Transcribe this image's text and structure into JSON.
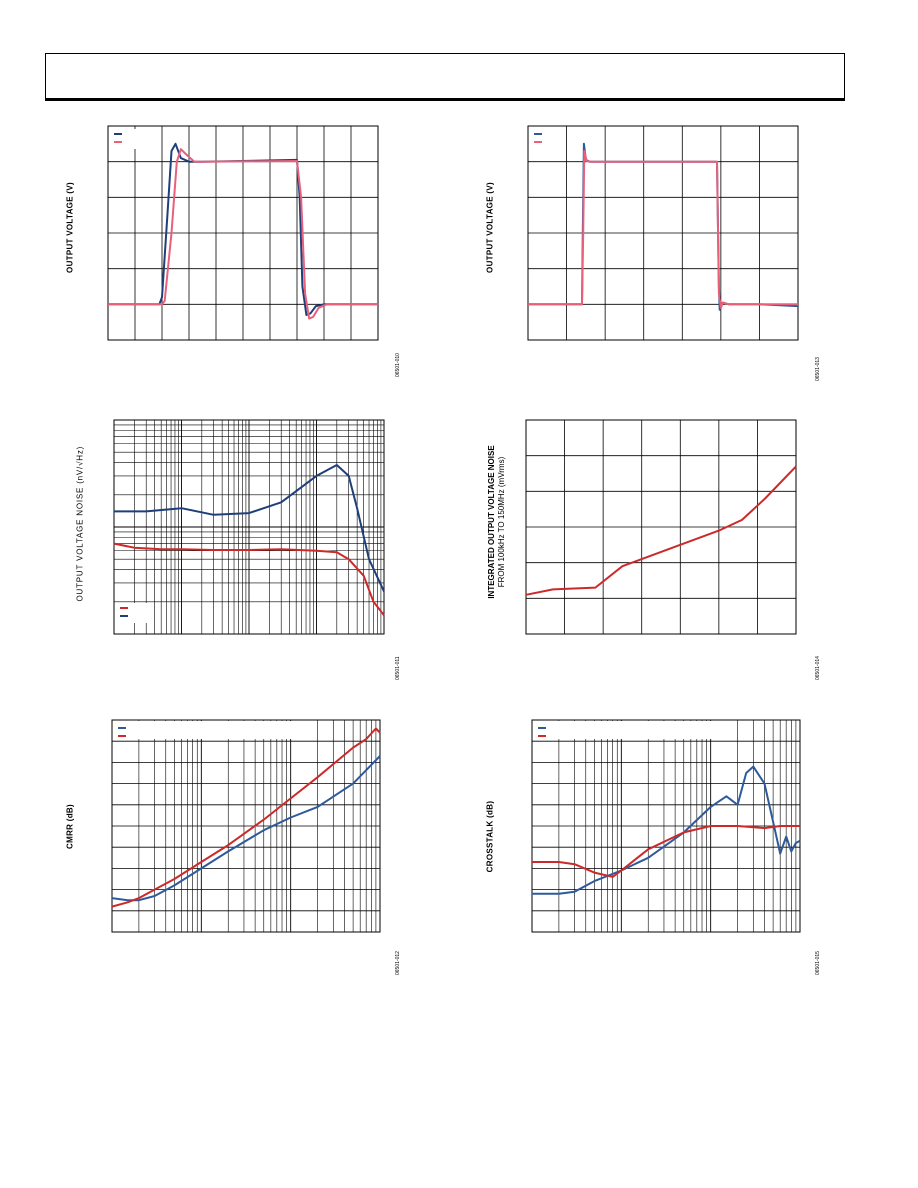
{
  "figure_codes": [
    "06501-010",
    "06501-013",
    "06501-011",
    "06501-014",
    "06501-012",
    "06501-015"
  ],
  "chart_data": [
    {
      "id": "p1",
      "type": "line",
      "ylabel": "OUTPUT VOLTAGE (V)",
      "grid": true,
      "legend": "top-left",
      "xlim": [
        0,
        10
      ],
      "ylim": [
        0,
        6
      ],
      "series": [
        {
          "color": "#1f3f7a",
          "x": [
            0,
            1.9,
            2.0,
            2.2,
            2.35,
            2.5,
            2.7,
            3.0,
            3.5,
            7.0,
            7.1,
            7.2,
            7.35,
            7.5,
            7.7,
            8.0,
            9,
            10
          ],
          "y": [
            1,
            1,
            1.2,
            3.5,
            5.3,
            5.5,
            5.1,
            5,
            5,
            5.05,
            4,
            1.5,
            0.7,
            0.75,
            0.95,
            1,
            1,
            1
          ]
        },
        {
          "color": "#e8607a",
          "x": [
            0,
            2.0,
            2.1,
            2.35,
            2.55,
            2.7,
            2.9,
            3.2,
            3.5,
            7.0,
            7.15,
            7.3,
            7.45,
            7.6,
            7.8,
            8.1,
            9,
            10
          ],
          "y": [
            1,
            1,
            1.1,
            3.0,
            5.0,
            5.35,
            5.2,
            5,
            5,
            5.02,
            4,
            1.3,
            0.6,
            0.65,
            0.9,
            1,
            1,
            1
          ]
        }
      ]
    },
    {
      "id": "p2",
      "type": "line",
      "ylabel": "OUTPUT VOLTAGE (V)",
      "grid": true,
      "legend": "top-left",
      "xlim": [
        0,
        7
      ],
      "ylim": [
        0,
        6
      ],
      "series": [
        {
          "color": "#2e5a9c",
          "x": [
            0,
            1.4,
            1.42,
            1.45,
            1.5,
            1.6,
            2,
            4.9,
            4.95,
            4.97,
            5.0,
            5.05,
            5.2,
            6,
            7
          ],
          "y": [
            1,
            1,
            3,
            5.5,
            5.05,
            5,
            5,
            5,
            1.5,
            0.85,
            1.0,
            1.05,
            1.0,
            1,
            0.95
          ]
        },
        {
          "color": "#e8607a",
          "x": [
            0,
            1.4,
            1.43,
            1.46,
            1.52,
            1.6,
            2,
            4.9,
            4.95,
            5.0,
            5.05,
            5.2,
            6,
            7
          ],
          "y": [
            1,
            1,
            3,
            5.3,
            5.02,
            5,
            5,
            5,
            1.3,
            0.9,
            1.05,
            1.0,
            1,
            1
          ]
        }
      ]
    },
    {
      "id": "p3",
      "type": "line",
      "ylabel": "OUTPUT VOLTAGE NOISE (nV/√Hz)",
      "grid": true,
      "log_x": true,
      "log_y": true,
      "legend": "bottom-left",
      "xlim": [
        10,
        100000
      ],
      "ylim": [
        1,
        100
      ],
      "series": [
        {
          "color": "#1f3f7a",
          "x": [
            10,
            30,
            100,
            300,
            1000,
            3000,
            10000,
            20000,
            30000,
            40000,
            60000,
            100000
          ],
          "y": [
            14,
            14,
            15,
            13,
            13.5,
            17,
            30,
            38,
            30,
            15,
            5,
            2.5
          ]
        },
        {
          "color": "#cc2a2a",
          "x": [
            10,
            20,
            50,
            100,
            300,
            1000,
            3000,
            10000,
            20000,
            30000,
            50000,
            70000,
            100000
          ],
          "y": [
            7,
            6.4,
            6.2,
            6.2,
            6.1,
            6.1,
            6.2,
            6.0,
            5.8,
            5.0,
            3.5,
            2.0,
            1.5
          ]
        }
      ]
    },
    {
      "id": "p4",
      "type": "line",
      "ylabel": "INTEGRATED OUTPUT VOLTAGE NOISE",
      "ylabel2": "FROM 100kHz TO 150MHz (mVrms)",
      "grid": true,
      "xlim": [
        0,
        7
      ],
      "ylim": [
        0,
        6
      ],
      "series": [
        {
          "color": "#cc2a2a",
          "x": [
            0,
            0.7,
            1.8,
            2.5,
            4,
            5,
            5.6,
            6.2,
            7
          ],
          "y": [
            1.1,
            1.25,
            1.3,
            1.9,
            2.5,
            2.9,
            3.2,
            3.8,
            4.7
          ]
        }
      ]
    },
    {
      "id": "p5",
      "type": "line",
      "ylabel": "CMRR (dB)",
      "grid": true,
      "log_x": true,
      "legend": "top-left",
      "xlim": [
        1,
        1000
      ],
      "ylim": [
        0,
        10
      ],
      "series": [
        {
          "color": "#2e5a9c",
          "x": [
            1,
            1.5,
            2,
            3,
            5,
            10,
            20,
            50,
            100,
            200,
            500,
            1000
          ],
          "y": [
            1.6,
            1.5,
            1.5,
            1.7,
            2.2,
            3.0,
            3.8,
            4.8,
            5.4,
            5.9,
            7.0,
            8.3
          ]
        },
        {
          "color": "#cc2a2a",
          "x": [
            1,
            1.5,
            2,
            3,
            5,
            10,
            20,
            50,
            100,
            200,
            500,
            700,
            900,
            1000
          ],
          "y": [
            1.2,
            1.4,
            1.6,
            2.0,
            2.5,
            3.3,
            4.1,
            5.3,
            6.3,
            7.3,
            8.7,
            9.1,
            9.6,
            9.4
          ]
        }
      ]
    },
    {
      "id": "p6",
      "type": "line",
      "ylabel": "CROSSTALK (dB)",
      "grid": true,
      "log_x": true,
      "legend": "top-left",
      "xlim": [
        1,
        1000
      ],
      "ylim": [
        0,
        10
      ],
      "series": [
        {
          "color": "#2e5a9c",
          "x": [
            1,
            2,
            3,
            5,
            10,
            20,
            50,
            100,
            150,
            200,
            250,
            300,
            400,
            500,
            600,
            700,
            800,
            900,
            1000
          ],
          "y": [
            1.8,
            1.8,
            1.9,
            2.4,
            2.9,
            3.5,
            4.7,
            5.9,
            6.4,
            6.0,
            7.5,
            7.8,
            7.0,
            5.2,
            3.7,
            4.5,
            3.8,
            4.2,
            4.3
          ]
        },
        {
          "color": "#cc2a2a",
          "x": [
            1,
            2,
            3,
            5,
            8,
            10,
            20,
            50,
            100,
            200,
            400,
            600,
            800,
            1000
          ],
          "y": [
            3.3,
            3.3,
            3.2,
            2.8,
            2.6,
            2.9,
            3.9,
            4.7,
            5.0,
            5.0,
            4.9,
            5.0,
            5.0,
            5.0
          ]
        }
      ]
    }
  ]
}
